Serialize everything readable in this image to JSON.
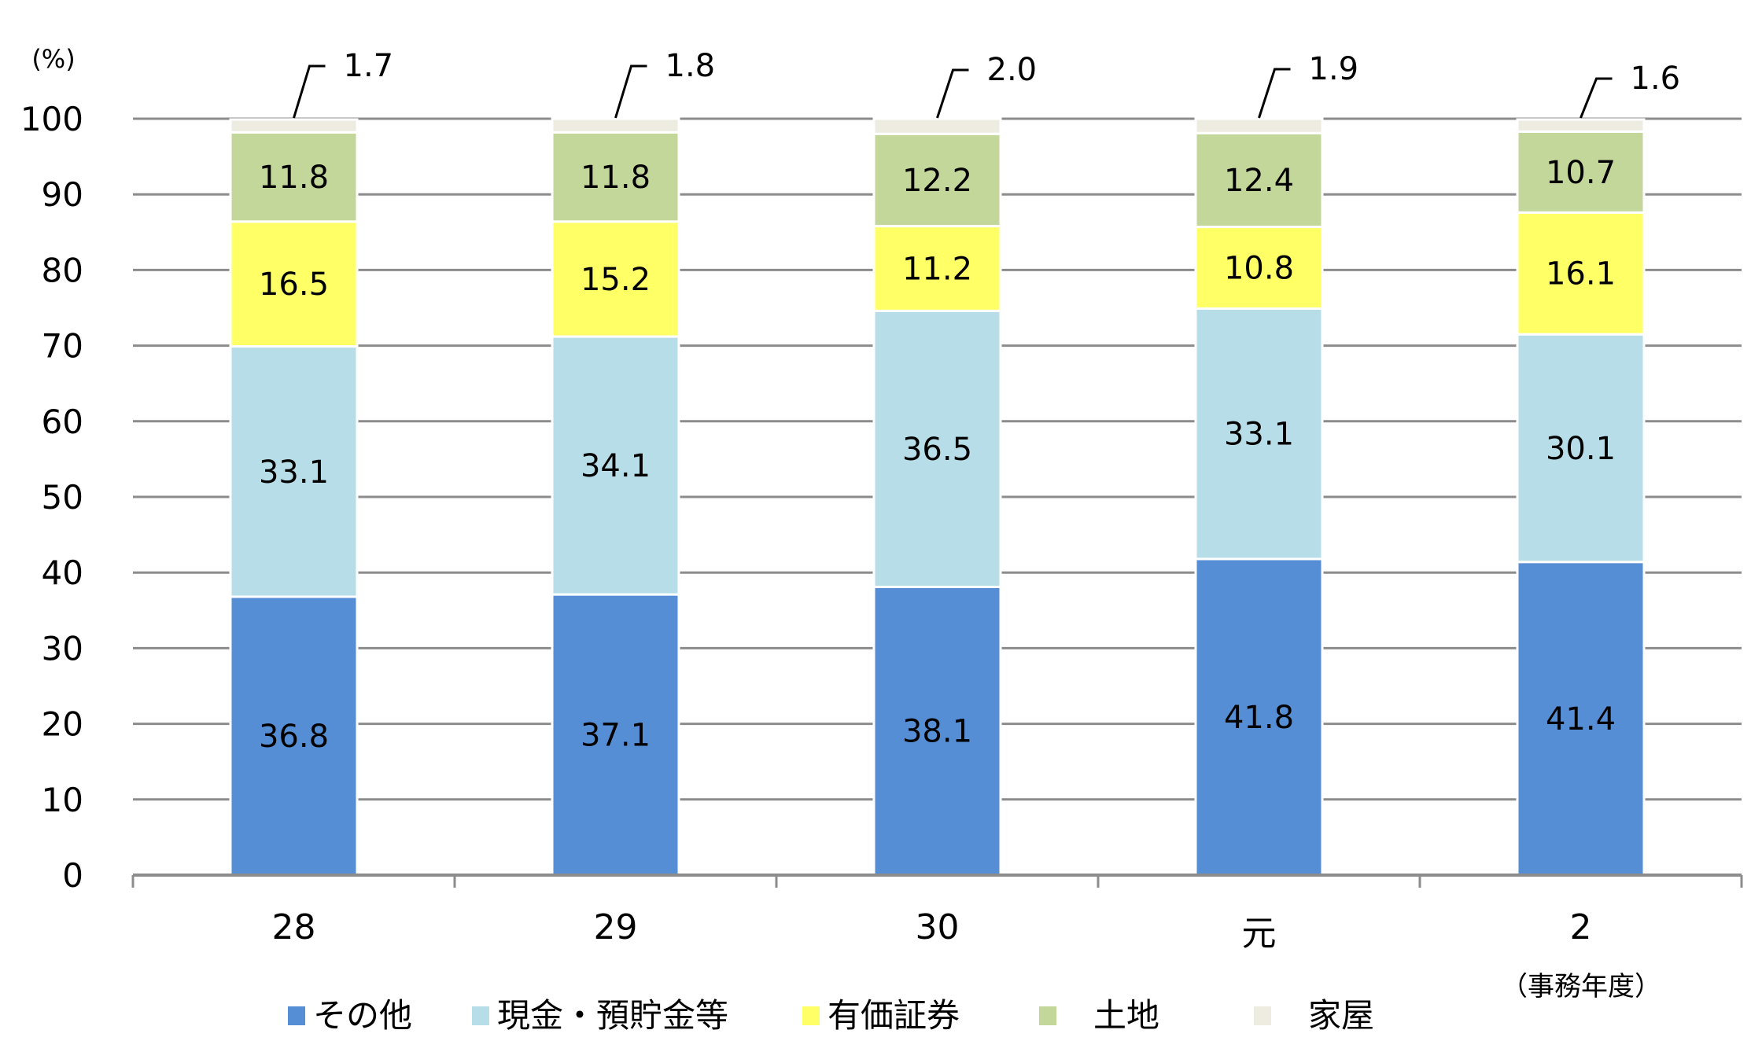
{
  "chart_data": {
    "type": "bar",
    "stacked": true,
    "unit_label": "(%)",
    "xlabel": "（事務年度）",
    "categories": [
      "28",
      "29",
      "30",
      "元",
      "2"
    ],
    "ylim": [
      0,
      100
    ],
    "yticks": [
      0,
      10,
      20,
      30,
      40,
      50,
      60,
      70,
      80,
      90,
      100
    ],
    "grid": true,
    "legend_position": "bottom",
    "series": [
      {
        "name": "その他",
        "color": "#558ED5",
        "values": [
          36.8,
          37.1,
          38.1,
          41.8,
          41.4
        ]
      },
      {
        "name": "現金・預貯金等",
        "color": "#B7DEE8",
        "values": [
          33.1,
          34.1,
          36.5,
          33.1,
          30.1
        ]
      },
      {
        "name": "有価証券",
        "color": "#FFFF66",
        "values": [
          16.5,
          15.2,
          11.2,
          10.8,
          16.1
        ]
      },
      {
        "name": "土地",
        "color": "#C4D79B",
        "values": [
          11.8,
          11.8,
          12.2,
          12.4,
          10.7
        ]
      },
      {
        "name": "家屋",
        "color": "#EEECE1",
        "values": [
          1.7,
          1.8,
          2.0,
          1.9,
          1.6
        ]
      }
    ]
  }
}
